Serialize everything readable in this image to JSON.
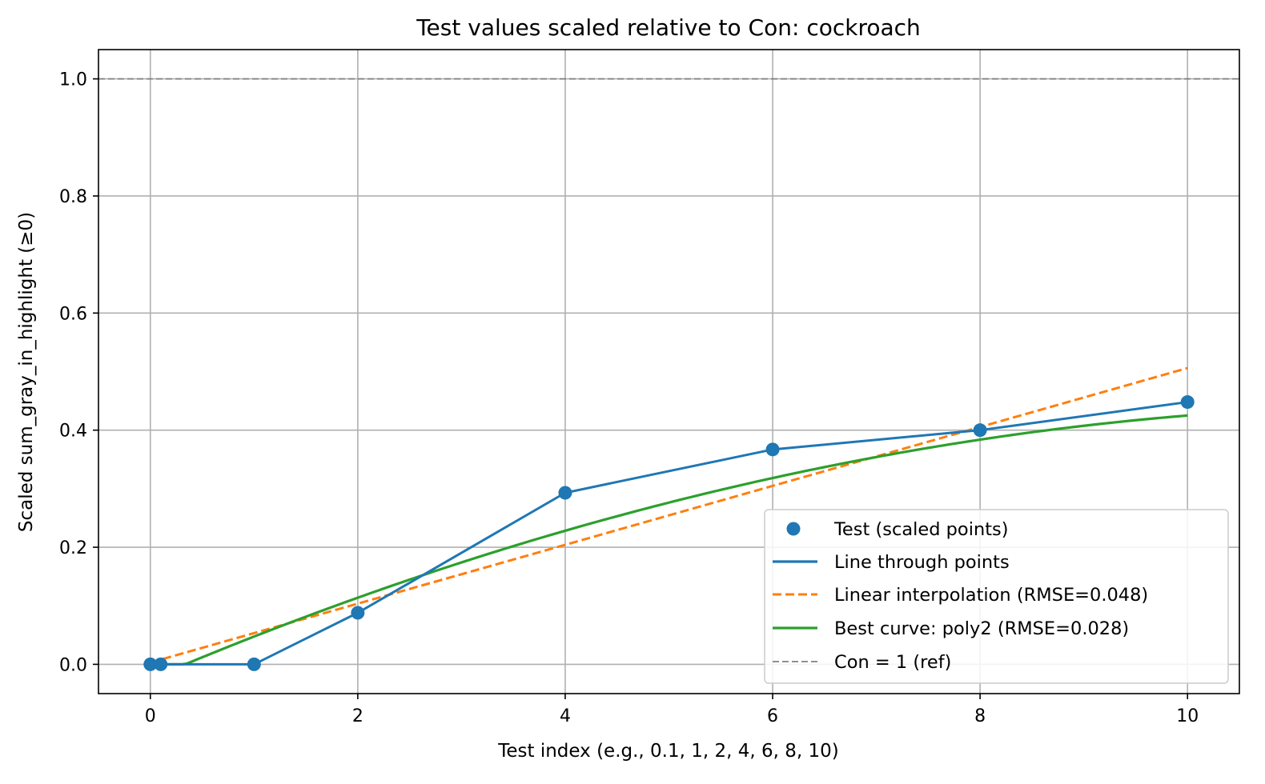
{
  "chart_data": {
    "type": "line",
    "title": "Test values scaled relative to Con: cockroach",
    "xlabel": "Test index (e.g., 0.1, 1, 2, 4, 6, 8, 10)",
    "ylabel": "Scaled sum_gray_in_highlight (≥0)",
    "xlim": [
      -0.5,
      10.5
    ],
    "ylim": [
      -0.05,
      1.05
    ],
    "xticks": [
      0,
      2,
      4,
      6,
      8,
      10
    ],
    "yticks": [
      0.0,
      0.2,
      0.4,
      0.6,
      0.8,
      1.0
    ],
    "xtick_labels": [
      "0",
      "2",
      "4",
      "6",
      "8",
      "10"
    ],
    "ytick_labels": [
      "0.0",
      "0.2",
      "0.4",
      "0.6",
      "0.8",
      "1.0"
    ],
    "grid": true,
    "legend_position": "lower-right",
    "points": {
      "x": [
        0,
        0.1,
        1,
        2,
        4,
        6,
        8,
        10
      ],
      "y": [
        0.0,
        0.0,
        0.0,
        0.088,
        0.293,
        0.367,
        0.4,
        0.448
      ]
    },
    "linear_fit": {
      "slope": 0.0503,
      "intercept": 0.003
    },
    "poly2_fit": {
      "a": -0.00305,
      "b": 0.0755,
      "c": -0.025,
      "clip_min": 0
    },
    "reference_y": 1.0,
    "series": [
      {
        "name": "Test (scaled points)",
        "kind": "scatter",
        "color": "#1f77b4"
      },
      {
        "name": "Line through points",
        "kind": "line",
        "color": "#1f77b4"
      },
      {
        "name": "Linear interpolation (RMSE=0.048)",
        "kind": "dashed",
        "color": "#ff7f0e"
      },
      {
        "name": "Best curve: poly2 (RMSE=0.028)",
        "kind": "line",
        "color": "#2ca02c"
      },
      {
        "name": "Con = 1 (ref)",
        "kind": "reference",
        "color": "#808080"
      }
    ]
  }
}
